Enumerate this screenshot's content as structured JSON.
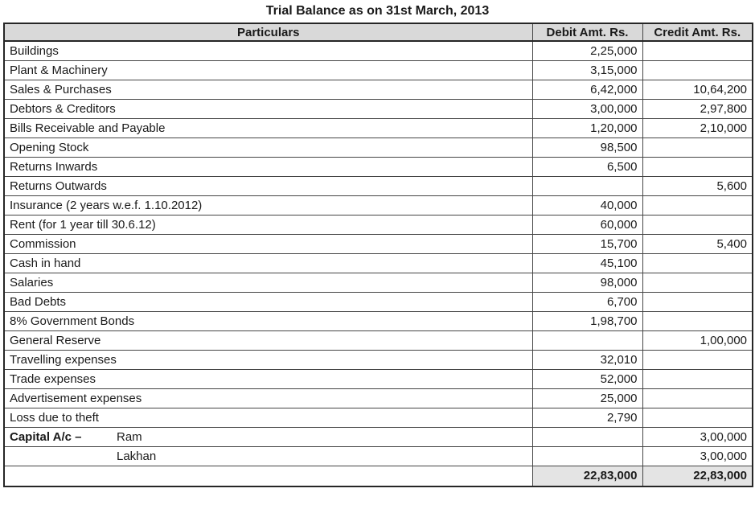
{
  "title": "Trial Balance as on 31st March, 2013",
  "colors": {
    "header_bg": "#d9d9d9",
    "total_bg": "#e4e4e4",
    "border": "#454545",
    "outer_border": "#262626",
    "text": "#1a1a1a"
  },
  "table": {
    "headers": [
      "Particulars",
      "Debit Amt. Rs.",
      "Credit Amt. Rs."
    ],
    "rows": [
      {
        "label": "Buildings",
        "debit": "2,25,000",
        "credit": ""
      },
      {
        "label": "Plant & Machinery",
        "debit": "3,15,000",
        "credit": ""
      },
      {
        "label": "Sales & Purchases",
        "debit": "6,42,000",
        "credit": "10,64,200"
      },
      {
        "label": "Debtors & Creditors",
        "debit": "3,00,000",
        "credit": "2,97,800"
      },
      {
        "label": "Bills Receivable and Payable",
        "debit": "1,20,000",
        "credit": "2,10,000"
      },
      {
        "label": "Opening Stock",
        "debit": "98,500",
        "credit": ""
      },
      {
        "label": "Returns Inwards",
        "debit": "6,500",
        "credit": ""
      },
      {
        "label": "Returns Outwards",
        "debit": "",
        "credit": "5,600"
      },
      {
        "label": "Insurance (2 years w.e.f. 1.10.2012)",
        "debit": "40,000",
        "credit": ""
      },
      {
        "label": "Rent (for 1 year till 30.6.12)",
        "debit": "60,000",
        "credit": ""
      },
      {
        "label": "Commission",
        "debit": "15,700",
        "credit": "5,400"
      },
      {
        "label": "Cash in hand",
        "debit": "45,100",
        "credit": ""
      },
      {
        "label": "Salaries",
        "debit": "98,000",
        "credit": ""
      },
      {
        "label": "Bad Debts",
        "debit": "6,700",
        "credit": ""
      },
      {
        "label": "8% Government Bonds",
        "debit": "1,98,700",
        "credit": ""
      },
      {
        "label": "General Reserve",
        "debit": "",
        "credit": "1,00,000"
      },
      {
        "label": "Travelling expenses",
        "debit": "32,010",
        "credit": ""
      },
      {
        "label": "Trade expenses",
        "debit": "52,000",
        "credit": ""
      },
      {
        "label": "Advertisement expenses",
        "debit": "25,000",
        "credit": ""
      },
      {
        "label": "Loss due to theft",
        "debit": "2,790",
        "credit": ""
      },
      {
        "label_bold": "Capital A/c –",
        "label_name": "Ram",
        "debit": "",
        "credit": "3,00,000"
      },
      {
        "label_bold": "",
        "label_name": "Lakhan",
        "debit": "",
        "credit": "3,00,000"
      }
    ],
    "total": {
      "label": "",
      "debit": "22,83,000",
      "credit": "22,83,000"
    }
  }
}
